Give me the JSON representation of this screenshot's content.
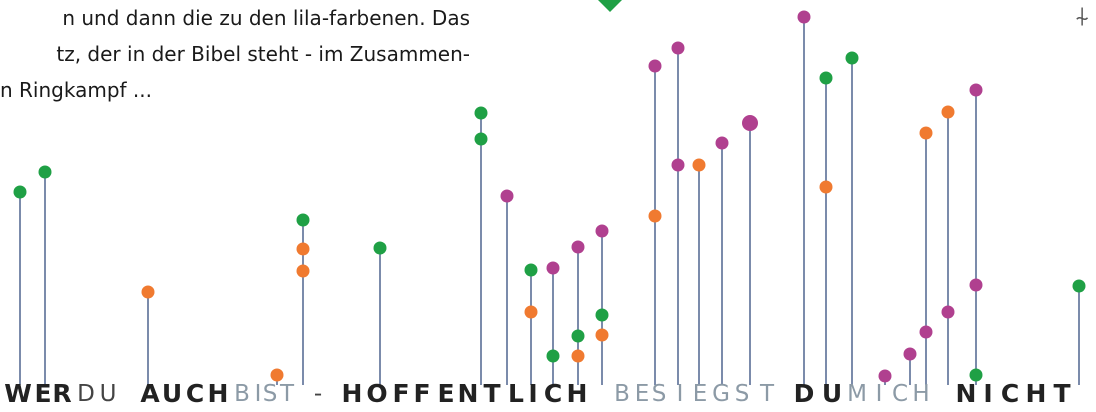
{
  "caption": {
    "lines": [
      "n und dann die zu den lila-farbenen. Das",
      "tz, der in der Bibel steht - im Zusammen-",
      "n Ringkampf ..."
    ]
  },
  "words": [
    {
      "text": "WER",
      "style": "bold"
    },
    {
      "text": "DU",
      "style": "thin"
    },
    {
      "text": "AUCH",
      "style": "bold"
    },
    {
      "text": "BIST",
      "style": "gray"
    },
    {
      "text": "-",
      "style": "thin"
    },
    {
      "text": "HOFFENTLICH",
      "style": "bold"
    },
    {
      "text": "BESIEGST",
      "style": "gray"
    },
    {
      "text": "DU",
      "style": "bold"
    },
    {
      "text": "MICH",
      "style": "gray"
    },
    {
      "text": "NICHT",
      "style": "bold"
    }
  ],
  "colors": {
    "green": "#1fa045",
    "orange": "#f07a30",
    "purple": "#b0408f",
    "stem": "#5a6e96"
  },
  "corner_icon": "pencil-mark-icon"
}
